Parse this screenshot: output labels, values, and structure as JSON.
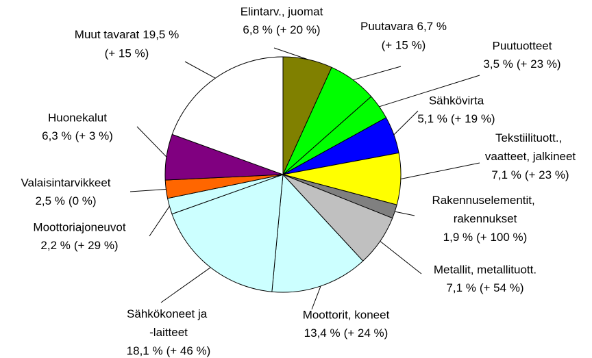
{
  "chart_data": {
    "type": "pie",
    "categories": [
      "Elintarv., juomat",
      "Puutavara",
      "Puutuotteet",
      "Sähkövirta",
      "Tekstiilituott., vaatteet, jalkineet",
      "Rakennuselementit, rakennukset",
      "Metallit, metallituott.",
      "Moottorit, koneet",
      "Sähkökoneet ja -laitteet",
      "Moottoriajoneuvot",
      "Valaisintarvikkeet",
      "Huonekalut",
      "Muut tavarat"
    ],
    "values": [
      6.8,
      6.7,
      3.5,
      5.1,
      7.1,
      1.9,
      7.1,
      13.4,
      18.1,
      2.2,
      2.5,
      6.3,
      19.5
    ],
    "value_labels": [
      "6,8 %",
      "6,7 %",
      "3,5 %",
      "5,1 %",
      "7,1 %",
      "1,9 %",
      "7,1 %",
      "13,4 %",
      "18,1 %",
      "2,2 %",
      "2,5 %",
      "6,3 %",
      "19,5 %"
    ],
    "changes": [
      20,
      15,
      23,
      19,
      23,
      100,
      54,
      24,
      46,
      29,
      0,
      3,
      15
    ],
    "change_labels": [
      "(+ 20 %)",
      "(+ 15 %)",
      "(+ 23 %)",
      "(+ 19 %)",
      "(+ 23 %)",
      "(+ 100 %)",
      "(+ 54 %)",
      "(+ 24 %)",
      "(+ 46 %)",
      "(+ 29 %)",
      "(0 %)",
      "(+ 3 %)",
      "(+ 15 %)"
    ],
    "colors": [
      "#808000",
      "#00ff00",
      "#00ff00",
      "#0000ff",
      "#ffff00",
      "#808080",
      "#c0c0c0",
      "#ccffff",
      "#ccffff",
      "#ccffff",
      "#ff6600",
      "#800080",
      "#ffffff"
    ]
  }
}
